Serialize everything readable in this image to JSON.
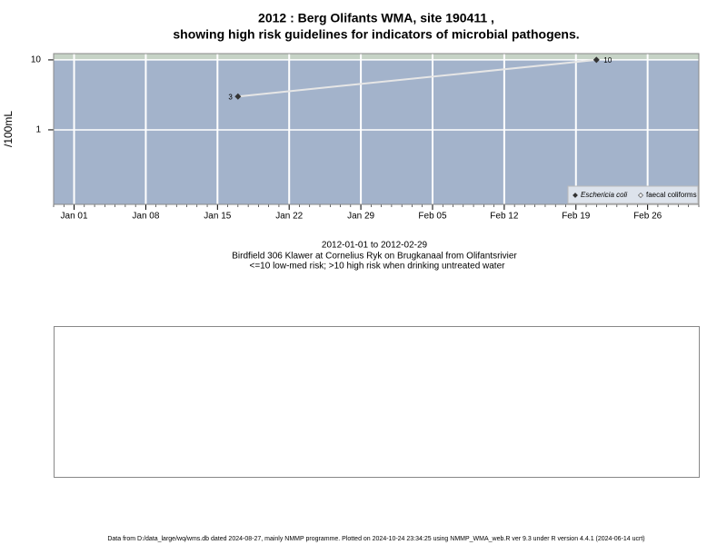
{
  "chart_data": {
    "type": "line",
    "title": "2012 : Berg Olifants WMA, site 190411 ,",
    "subtitle": "showing high risk guidelines for indicators of microbial pathogens.",
    "y_label": "/100mL",
    "x_label_lines": [
      "2012-01-01 to 2012-02-29",
      "Birdfield 306 Klawer at Cornelius Ryk on Brugkanaal from Olifantsrivier",
      "<=10 low-med risk; >10 high risk when drinking untreated water"
    ],
    "footer": "Data from D:/data_large/wq/wms.db dated 2024-08-27, mainly NMMP programme. Plotted on 2024-10-24 23:34:25 using NMMP_WMA_web.R ver 9.3 under R version 4.4.1 (2024-06-14 ucrt)",
    "x": [
      "2012-01-17",
      "2012-02-21"
    ],
    "series": [
      {
        "name": "Eschericia coli",
        "color": "#333333",
        "line_color": "#e6e6e6",
        "values": [
          3,
          10
        ]
      },
      {
        "name": "faecal coliforms",
        "color": "#333333",
        "values": [
          null,
          null
        ]
      }
    ],
    "log_scale": true,
    "ylim": [
      0.086,
      12.3
    ],
    "yticks": [
      1,
      10
    ],
    "high_risk_threshold": 10,
    "xlim": [
      "2011-12-30",
      "2012-03-02"
    ],
    "xticks": [
      {
        "value": "2012-01-01",
        "label": "Jan 01"
      },
      {
        "value": "2012-01-08",
        "label": "Jan 08"
      },
      {
        "value": "2012-01-15",
        "label": "Jan 15"
      },
      {
        "value": "2012-01-22",
        "label": "Jan 22"
      },
      {
        "value": "2012-01-29",
        "label": "Jan 29"
      },
      {
        "value": "2012-02-05",
        "label": "Feb 05"
      },
      {
        "value": "2012-02-12",
        "label": "Feb 12"
      },
      {
        "value": "2012-02-19",
        "label": "Feb 19"
      },
      {
        "value": "2012-02-26",
        "label": "Feb 26"
      }
    ],
    "grid": true,
    "legend": "bottom-right",
    "background_color": "#a3b3cb",
    "high_risk_color": "#c6d3c6"
  }
}
